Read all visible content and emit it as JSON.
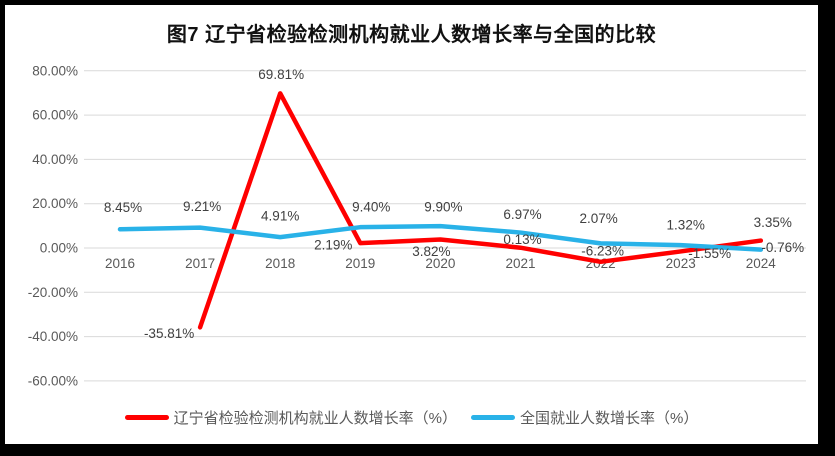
{
  "frame": {
    "border_color": "#000000",
    "page_background": "#FFFFFF"
  },
  "chart_data": {
    "type": "line",
    "title": "图7 辽宁省检验检测机构就业人数增长率与全国的比较",
    "categories": [
      "2016",
      "2017",
      "2018",
      "2019",
      "2020",
      "2021",
      "2022",
      "2023",
      "2024"
    ],
    "series": [
      {
        "name": "辽宁省检验检测机构就业人数增长率（%）",
        "color": "#FF0000",
        "values": [
          null,
          -35.81,
          69.81,
          2.19,
          3.82,
          0.13,
          -6.23,
          -1.55,
          3.35
        ],
        "labels": [
          null,
          "-35.81%",
          "69.81%",
          "2.19%",
          "3.82%",
          "0.13%",
          "-6.23%",
          "-1.55%",
          "3.35%"
        ]
      },
      {
        "name": "全国就业人数增长率（%）",
        "color": "#29B2E8",
        "values": [
          8.45,
          9.21,
          4.91,
          9.4,
          9.9,
          6.97,
          2.07,
          1.32,
          -0.76
        ],
        "labels": [
          "8.45%",
          "9.21%",
          "4.91%",
          "9.40%",
          "9.90%",
          "6.97%",
          "2.07%",
          "1.32%",
          "-0.76%"
        ]
      }
    ],
    "y_axis": {
      "tick_labels": [
        "80.00%",
        "60.00%",
        "40.00%",
        "20.00%",
        "0.00%",
        "-20.00%",
        "-40.00%",
        "-60.00%"
      ],
      "tick_values": [
        80,
        60,
        40,
        20,
        0,
        -20,
        -40,
        -60
      ],
      "min": -60,
      "max": 80
    },
    "grid": true,
    "grid_color": "#D9D9D9",
    "label_color": "#404040",
    "axis_text_color": "#595959",
    "legend_position": "bottom"
  }
}
